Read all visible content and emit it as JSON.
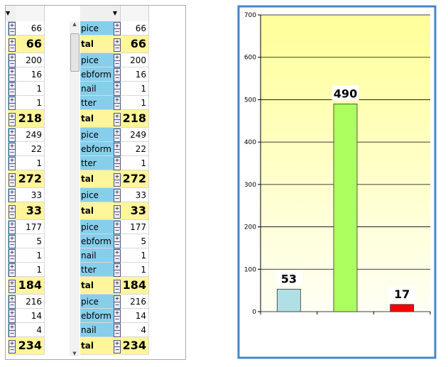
{
  "grid": {
    "rows": [
      {
        "label": "pice",
        "value": 66,
        "total": false
      },
      {
        "label": "tal",
        "value": 66,
        "total": true
      },
      {
        "label": "pice",
        "value": 200,
        "total": false
      },
      {
        "label": "ebform",
        "value": 16,
        "total": false
      },
      {
        "label": "nail",
        "value": 1,
        "total": false
      },
      {
        "label": "tter",
        "value": 1,
        "total": false
      },
      {
        "label": "tal",
        "value": 218,
        "total": true
      },
      {
        "label": "pice",
        "value": 249,
        "total": false
      },
      {
        "label": "ebform",
        "value": 22,
        "total": false
      },
      {
        "label": "tter",
        "value": 1,
        "total": false
      },
      {
        "label": "tal",
        "value": 272,
        "total": true
      },
      {
        "label": "pice",
        "value": 33,
        "total": false
      },
      {
        "label": "tal",
        "value": 33,
        "total": true
      },
      {
        "label": "pice",
        "value": 177,
        "total": false
      },
      {
        "label": "ebform",
        "value": 5,
        "total": false
      },
      {
        "label": "nail",
        "value": 1,
        "total": false
      },
      {
        "label": "tter",
        "value": 1,
        "total": false
      },
      {
        "label": "tal",
        "value": 184,
        "total": true
      },
      {
        "label": "pice",
        "value": 216,
        "total": false
      },
      {
        "label": "ebform",
        "value": 14,
        "total": false
      },
      {
        "label": "nail",
        "value": 4,
        "total": false
      },
      {
        "label": "tal",
        "value": 234,
        "total": true
      }
    ]
  },
  "chart_data": {
    "type": "bar",
    "categories": [
      null,
      null,
      null
    ],
    "values": [
      53,
      490,
      17
    ],
    "colors": [
      "#b0e0e6",
      "#adff5f",
      "#ff0000"
    ],
    "ylim": [
      0,
      700
    ],
    "yticks": [
      0,
      100,
      200,
      300,
      400,
      500,
      600,
      700
    ],
    "grid": true
  }
}
